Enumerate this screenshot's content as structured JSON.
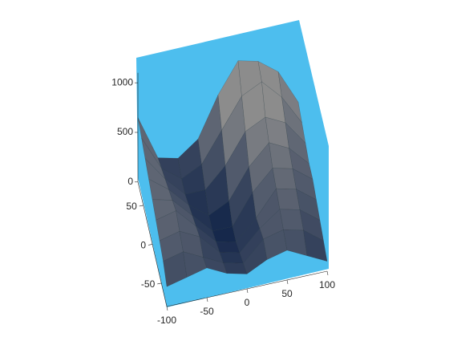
{
  "chart_data": {
    "type": "surface3d",
    "x": [
      -100,
      -75,
      -50,
      -25,
      0,
      25,
      50,
      75,
      100
    ],
    "y": [
      -80,
      -60,
      -40,
      -20,
      0,
      20,
      40,
      60,
      80
    ],
    "z": [
      [
        200,
        250,
        300,
        200,
        150,
        250,
        300,
        200,
        100
      ],
      [
        300,
        350,
        250,
        150,
        100,
        300,
        350,
        300,
        150
      ],
      [
        350,
        400,
        300,
        100,
        50,
        250,
        400,
        350,
        200
      ],
      [
        400,
        450,
        250,
        50,
        0,
        200,
        450,
        400,
        250
      ],
      [
        450,
        400,
        200,
        0,
        0,
        300,
        500,
        450,
        300
      ],
      [
        500,
        350,
        150,
        0,
        100,
        400,
        600,
        500,
        300
      ],
      [
        550,
        300,
        100,
        100,
        300,
        600,
        700,
        600,
        350
      ],
      [
        600,
        250,
        100,
        200,
        500,
        800,
        900,
        700,
        400
      ],
      [
        650,
        200,
        150,
        300,
        700,
        1000,
        950,
        800,
        450
      ]
    ],
    "xlim": [
      -100,
      100
    ],
    "xticks": [
      -100,
      -50,
      0,
      50,
      100
    ],
    "ylim": [
      -80,
      80
    ],
    "yticks": [
      -50,
      0,
      50
    ],
    "zlim": [
      0,
      1100
    ],
    "zticks": [
      0,
      500,
      1000
    ],
    "pane_color": "#4dbeee",
    "low_color": "#14264a",
    "high_color": "#8c8c8c"
  }
}
